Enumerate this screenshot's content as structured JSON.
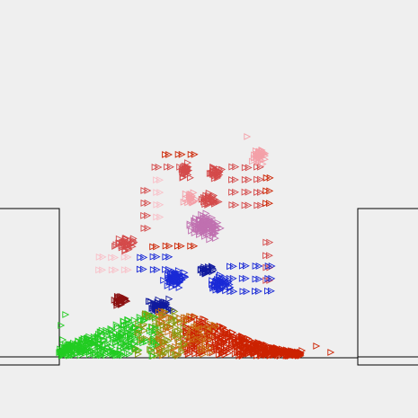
{
  "simulation": {
    "background_color": "#efefef",
    "container_stroke_color": "#000000",
    "particle_glyph": "triangle-right-outline-icon",
    "palette": {
      "red": "#cc2200",
      "dark_red": "#8b1010",
      "salmon": "#d44a4a",
      "pink": "#f4a0a8",
      "light_pink": "#f9c0c8",
      "mauve": "#c070b0",
      "blue": "#1a2ad6",
      "navy": "#101a9e",
      "green": "#22cc22",
      "olive": "#8a9a10",
      "orange": "#c86a10"
    }
  }
}
